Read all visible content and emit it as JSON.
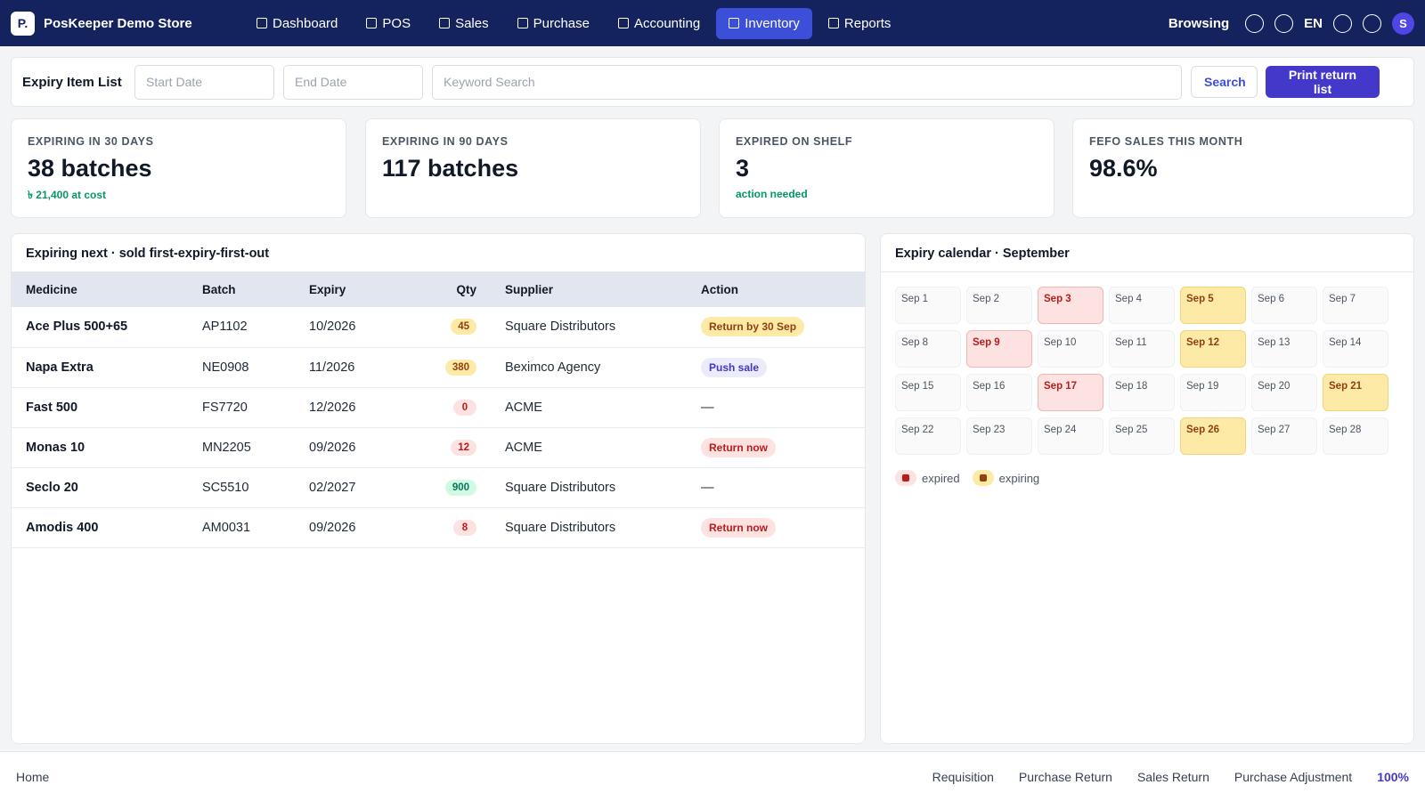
{
  "brand": {
    "logo_letter": "P.",
    "name": "PosKeeper Demo Store"
  },
  "nav": {
    "items": [
      {
        "label": "Dashboard",
        "active": false
      },
      {
        "label": "POS",
        "active": false
      },
      {
        "label": "Sales",
        "active": false
      },
      {
        "label": "Purchase",
        "active": false
      },
      {
        "label": "Accounting",
        "active": false
      },
      {
        "label": "Inventory",
        "active": true
      },
      {
        "label": "Reports",
        "active": false
      }
    ],
    "browsing_label": "Browsing",
    "language": "EN",
    "avatar_initial": "S"
  },
  "filter": {
    "title": "Expiry Item List",
    "start_placeholder": "Start Date",
    "end_placeholder": "End Date",
    "keyword_placeholder": "Keyword Search",
    "search_label": "Search",
    "print_label": "Print return list"
  },
  "kpis": [
    {
      "label": "EXPIRING IN 30 DAYS",
      "value": "38 batches",
      "sub": "৳ 21,400 at cost"
    },
    {
      "label": "EXPIRING IN 90 DAYS",
      "value": "117 batches",
      "sub": ""
    },
    {
      "label": "EXPIRED ON SHELF",
      "value": "3",
      "sub": "action needed"
    },
    {
      "label": "FEFO SALES THIS MONTH",
      "value": "98.6%",
      "sub": ""
    }
  ],
  "table": {
    "title": "Expiring next · sold first-expiry-first-out",
    "columns": [
      "Medicine",
      "Batch",
      "Expiry",
      "Qty",
      "Supplier",
      "Action"
    ],
    "rows": [
      {
        "medicine": "Ace Plus 500+65",
        "batch": "AP1102",
        "expiry": "10/2026",
        "qty": "45",
        "qty_tone": "amber",
        "supplier": "Square Distributors",
        "action": "Return by 30 Sep",
        "action_tone": "amber"
      },
      {
        "medicine": "Napa Extra",
        "batch": "NE0908",
        "expiry": "11/2026",
        "qty": "380",
        "qty_tone": "amber",
        "supplier": "Beximco Agency",
        "action": "Push sale",
        "action_tone": "purple"
      },
      {
        "medicine": "Fast 500",
        "batch": "FS7720",
        "expiry": "12/2026",
        "qty": "0",
        "qty_tone": "red",
        "supplier": "ACME",
        "action": "—",
        "action_tone": "none"
      },
      {
        "medicine": "Monas 10",
        "batch": "MN2205",
        "expiry": "09/2026",
        "qty": "12",
        "qty_tone": "red",
        "supplier": "ACME",
        "action": "Return now",
        "action_tone": "red"
      },
      {
        "medicine": "Seclo 20",
        "batch": "SC5510",
        "expiry": "02/2027",
        "qty": "900",
        "qty_tone": "green",
        "supplier": "Square Distributors",
        "action": "—",
        "action_tone": "none"
      },
      {
        "medicine": "Amodis 400",
        "batch": "AM0031",
        "expiry": "09/2026",
        "qty": "8",
        "qty_tone": "red",
        "supplier": "Square Distributors",
        "action": "Return now",
        "action_tone": "red"
      }
    ]
  },
  "calendar": {
    "title": "Expiry calendar · September",
    "days": [
      {
        "label": "Sep 1",
        "status": ""
      },
      {
        "label": "Sep 2",
        "status": ""
      },
      {
        "label": "Sep 3",
        "status": "expired"
      },
      {
        "label": "Sep 4",
        "status": ""
      },
      {
        "label": "Sep 5",
        "status": "expiring"
      },
      {
        "label": "Sep 6",
        "status": ""
      },
      {
        "label": "Sep 7",
        "status": ""
      },
      {
        "label": "Sep 8",
        "status": ""
      },
      {
        "label": "Sep 9",
        "status": "expired"
      },
      {
        "label": "Sep 10",
        "status": ""
      },
      {
        "label": "Sep 11",
        "status": ""
      },
      {
        "label": "Sep 12",
        "status": "expiring"
      },
      {
        "label": "Sep 13",
        "status": ""
      },
      {
        "label": "Sep 14",
        "status": ""
      },
      {
        "label": "Sep 15",
        "status": ""
      },
      {
        "label": "Sep 16",
        "status": ""
      },
      {
        "label": "Sep 17",
        "status": "expired"
      },
      {
        "label": "Sep 18",
        "status": ""
      },
      {
        "label": "Sep 19",
        "status": ""
      },
      {
        "label": "Sep 20",
        "status": ""
      },
      {
        "label": "Sep 21",
        "status": "expiring"
      },
      {
        "label": "Sep 22",
        "status": ""
      },
      {
        "label": "Sep 23",
        "status": ""
      },
      {
        "label": "Sep 24",
        "status": ""
      },
      {
        "label": "Sep 25",
        "status": ""
      },
      {
        "label": "Sep 26",
        "status": "expiring"
      },
      {
        "label": "Sep 27",
        "status": ""
      },
      {
        "label": "Sep 28",
        "status": ""
      }
    ],
    "legend_expired": "expired",
    "legend_expiring": "expiring"
  },
  "footer": {
    "home": "Home",
    "links": [
      "Requisition",
      "Purchase Return",
      "Sales Return",
      "Purchase Adjustment"
    ],
    "zoom": "100%"
  },
  "colors": {
    "topbar": "#14235e",
    "nav_active": "#3b4fd9",
    "primary": "#4338ca",
    "expired_bg": "#fde2e2",
    "expiring_bg": "#fdeaa7",
    "positive": "#059669"
  }
}
